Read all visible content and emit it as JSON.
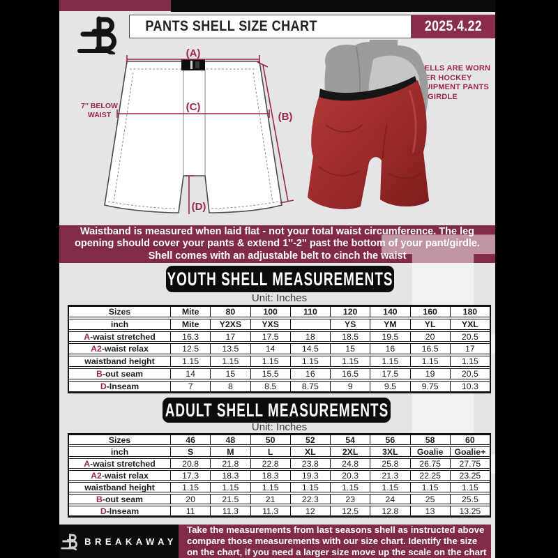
{
  "colors": {
    "maroon": "#822B48",
    "accent_text": "#9B2845",
    "page_bg": "#E5E5E8",
    "black_box": "#0C0C0C"
  },
  "header": {
    "title": "PANTS SHELL SIZE CHART",
    "date": "2025.4.22"
  },
  "diagram": {
    "label_a": "(A)",
    "label_b": "(B)",
    "label_c": "(C)",
    "label_d": "(D)",
    "below_waist": [
      "7'' BELOW",
      "WAIST"
    ],
    "side_note": [
      "SHELLS ARE WORN",
      "OVER HOCKEY",
      "EQUIPMENT PANTS",
      "OR GIRDLE"
    ]
  },
  "banner": [
    "Waistband is measured when laid flat - not your total waist circumference. The leg",
    "opening should cover your pants & extend 1''-2'' past the bottom of your pant/girdle.",
    "Shell comes with an adjustable belt to cinch the waist"
  ],
  "youth": {
    "heading": "YOUTH SHELL MEASUREMENTS",
    "unit": "Unit: Inches",
    "table": {
      "header": [
        "Sizes",
        "Mite",
        "80",
        "100",
        "110",
        "120",
        "140",
        "160",
        "180"
      ],
      "subheader": [
        "inch",
        "Mite",
        "Y2XS",
        "YXS",
        "",
        "YS",
        "YM",
        "YL",
        "YXL"
      ],
      "rows": [
        {
          "prefix": "A",
          "label": "-waist stretched",
          "values": [
            "16.3",
            "17",
            "17.5",
            "18",
            "18.5",
            "19.5",
            "20",
            "20.5"
          ]
        },
        {
          "prefix": "A2",
          "label": "-waist relax",
          "values": [
            "12.5",
            "13.5",
            "14",
            "14.5",
            "15",
            "16",
            "16.5",
            "17"
          ]
        },
        {
          "prefix": "",
          "label": "waistband height",
          "values": [
            "1.15",
            "1.15",
            "1.15",
            "1.15",
            "1.15",
            "1.15",
            "1.15",
            "1.15"
          ]
        },
        {
          "prefix": "B",
          "label": "-out seam",
          "values": [
            "14",
            "15",
            "15.5",
            "16",
            "16.5",
            "17.5",
            "19",
            "20.5"
          ]
        },
        {
          "prefix": "D",
          "label": "-Inseam",
          "values": [
            "7",
            "8",
            "8.5",
            "8.75",
            "9",
            "9.5",
            "9.75",
            "10.3"
          ]
        }
      ]
    }
  },
  "adult": {
    "heading": "ADULT SHELL MEASUREMENTS",
    "unit": "Unit: Inches",
    "table": {
      "header": [
        "Sizes",
        "46",
        "48",
        "50",
        "52",
        "54",
        "56",
        "58",
        "60"
      ],
      "subheader": [
        "inch",
        "S",
        "M",
        "L",
        "XL",
        "2XL",
        "3XL",
        "Goalie",
        "Goalie+"
      ],
      "rows": [
        {
          "prefix": "A",
          "label": "-waist stretched",
          "values": [
            "20.8",
            "21.8",
            "22.8",
            "23.8",
            "24.8",
            "25.8",
            "26.75",
            "27.75"
          ]
        },
        {
          "prefix": "A2",
          "label": "-waist relax",
          "values": [
            "17.3",
            "18.3",
            "18.3",
            "19.3",
            "20.3",
            "21.3",
            "22.25",
            "23.25"
          ]
        },
        {
          "prefix": "",
          "label": "waistband height",
          "values": [
            "1.15",
            "1.15",
            "1.15",
            "1.15",
            "1.15",
            "1.15",
            "1.15",
            "1.15"
          ]
        },
        {
          "prefix": "B",
          "label": "-out seam",
          "values": [
            "20",
            "21.5",
            "21",
            "22.3",
            "23",
            "24",
            "25",
            "25.5"
          ]
        },
        {
          "prefix": "D",
          "label": "-Inseam",
          "values": [
            "11",
            "11.3",
            "11.3",
            "12",
            "12.5",
            "12.8",
            "13",
            "13.25"
          ]
        }
      ]
    }
  },
  "watermark": "B",
  "footer": {
    "brand": "BREAKAWAY",
    "note": [
      "Take the measurements from last seasons shell as instructed above",
      "compare those measurements  with our size chart. Identify the size",
      "on the chart, if you need a larger size move up the scale on the chart"
    ]
  }
}
